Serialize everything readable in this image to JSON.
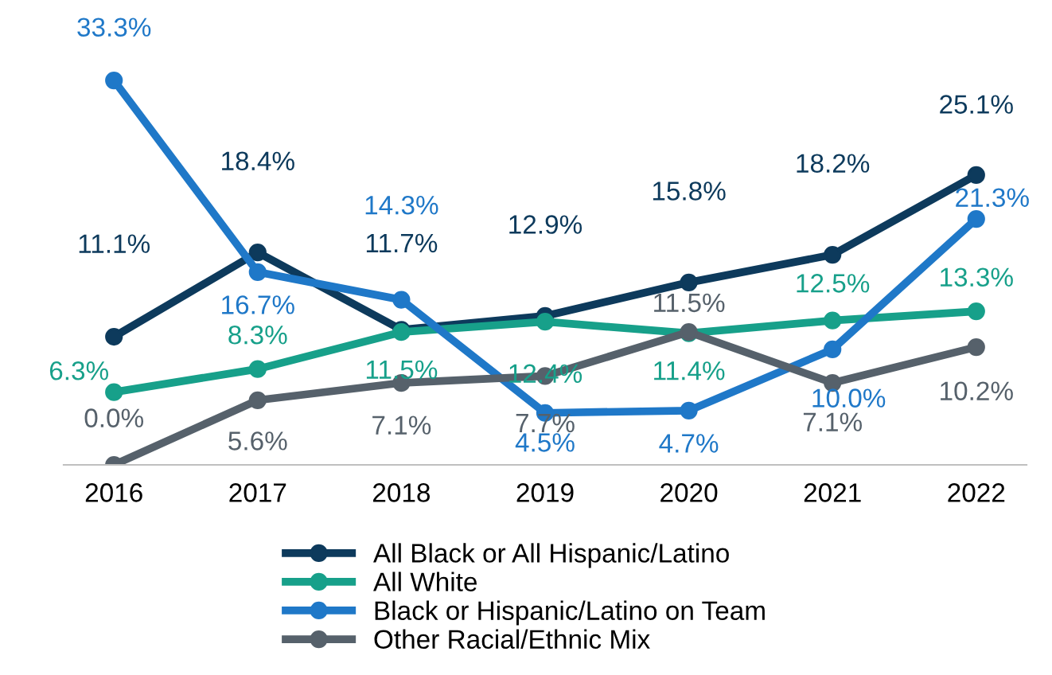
{
  "chart_data": {
    "type": "line",
    "categories": [
      "2016",
      "2017",
      "2018",
      "2019",
      "2020",
      "2021",
      "2022"
    ],
    "data_labels": true,
    "legend": "bottom",
    "grid": false,
    "marker": "circle",
    "line_style": "solid",
    "series": [
      {
        "name": "All Black or All Hispanic/Latino",
        "color": "#0d3a5c",
        "values": [
          11.1,
          18.4,
          11.7,
          12.9,
          15.8,
          18.2,
          25.1
        ],
        "value_labels": [
          "11.1%",
          "18.4%",
          "11.7%",
          "12.9%",
          "15.8%",
          "18.2%",
          "25.1%"
        ]
      },
      {
        "name": "All White",
        "color": "#17a08a",
        "values": [
          6.3,
          8.3,
          11.5,
          12.4,
          11.4,
          12.5,
          13.3
        ],
        "value_labels": [
          "6.3%",
          "8.3%",
          "11.5%",
          "12.4%",
          "11.4%",
          "12.5%",
          "13.3%"
        ]
      },
      {
        "name": "Black or Hispanic/Latino on Team",
        "color": "#1f78c8",
        "values": [
          33.3,
          16.7,
          14.3,
          4.5,
          4.7,
          10.0,
          21.3
        ],
        "value_labels": [
          "33.3%",
          "16.7%",
          "14.3%",
          "4.5%",
          "4.7%",
          "10.0%",
          "21.3%"
        ]
      },
      {
        "name": "Other Racial/Ethnic Mix",
        "color": "#56616b",
        "values": [
          0.0,
          5.6,
          7.1,
          7.7,
          11.5,
          7.1,
          10.2
        ],
        "value_labels": [
          "0.0%",
          "5.6%",
          "7.1%",
          "7.7%",
          "11.5%",
          "7.1%",
          "10.2%"
        ]
      }
    ]
  }
}
